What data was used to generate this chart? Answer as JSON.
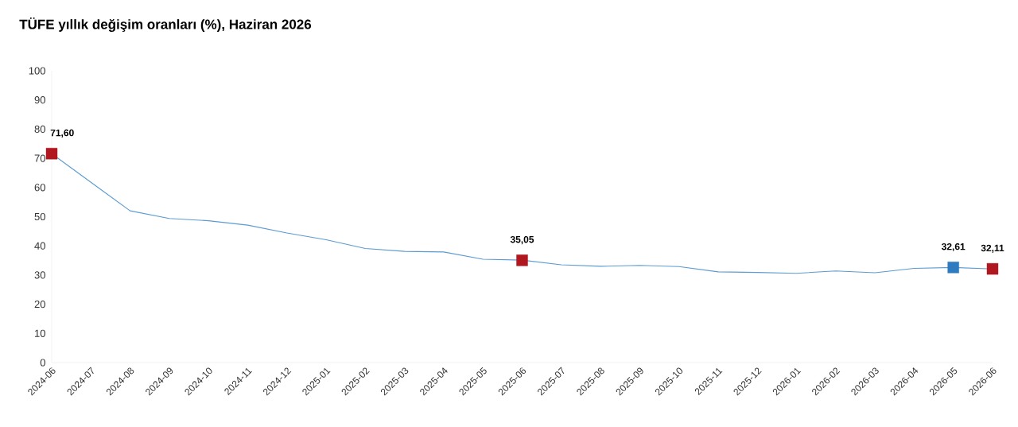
{
  "chart_data": {
    "type": "line",
    "title": "TÜFE yıllık değişim oranları (%), Haziran 2026",
    "categories": [
      "2024-06",
      "2024-07",
      "2024-08",
      "2024-09",
      "2024-10",
      "2024-11",
      "2024-12",
      "2025-01",
      "2025-02",
      "2025-03",
      "2025-04",
      "2025-05",
      "2025-06",
      "2025-07",
      "2025-08",
      "2025-09",
      "2025-10",
      "2025-11",
      "2025-12",
      "2026-01",
      "2026-02",
      "2026-03",
      "2026-04",
      "2026-05",
      "2026-06"
    ],
    "series": [
      {
        "color": "#5b9bd1",
        "marker": "none",
        "values": [
          71.6,
          61.8,
          52.0,
          49.4,
          48.6,
          47.1,
          44.4,
          42.1,
          39.1,
          38.1,
          37.9,
          35.4,
          35.1,
          33.5,
          33.0,
          33.3,
          32.9,
          31.1,
          30.9,
          30.6,
          31.4,
          30.8,
          32.3,
          32.6,
          32.1
        ]
      },
      {
        "type": "scatter",
        "marker": "square",
        "colors": [
          "#b0171f",
          null,
          null,
          null,
          null,
          null,
          null,
          null,
          null,
          null,
          null,
          null,
          "#b0171f",
          null,
          null,
          null,
          null,
          null,
          null,
          null,
          null,
          null,
          null,
          "#2e7bbf",
          "#b0171f"
        ],
        "values": [
          71.6,
          null,
          null,
          null,
          null,
          null,
          null,
          null,
          null,
          null,
          null,
          null,
          35.05,
          null,
          null,
          null,
          null,
          null,
          null,
          null,
          null,
          null,
          null,
          32.61,
          32.11
        ],
        "value_labels": [
          "71,60",
          null,
          null,
          null,
          null,
          null,
          null,
          null,
          null,
          null,
          null,
          null,
          "35,05",
          null,
          null,
          null,
          null,
          null,
          null,
          null,
          null,
          null,
          null,
          "32,61",
          "32,11"
        ]
      }
    ],
    "ylim": [
      0,
      100
    ],
    "yticks": [
      0,
      10,
      20,
      30,
      40,
      50,
      60,
      70,
      80,
      90,
      100
    ],
    "grid": false
  }
}
